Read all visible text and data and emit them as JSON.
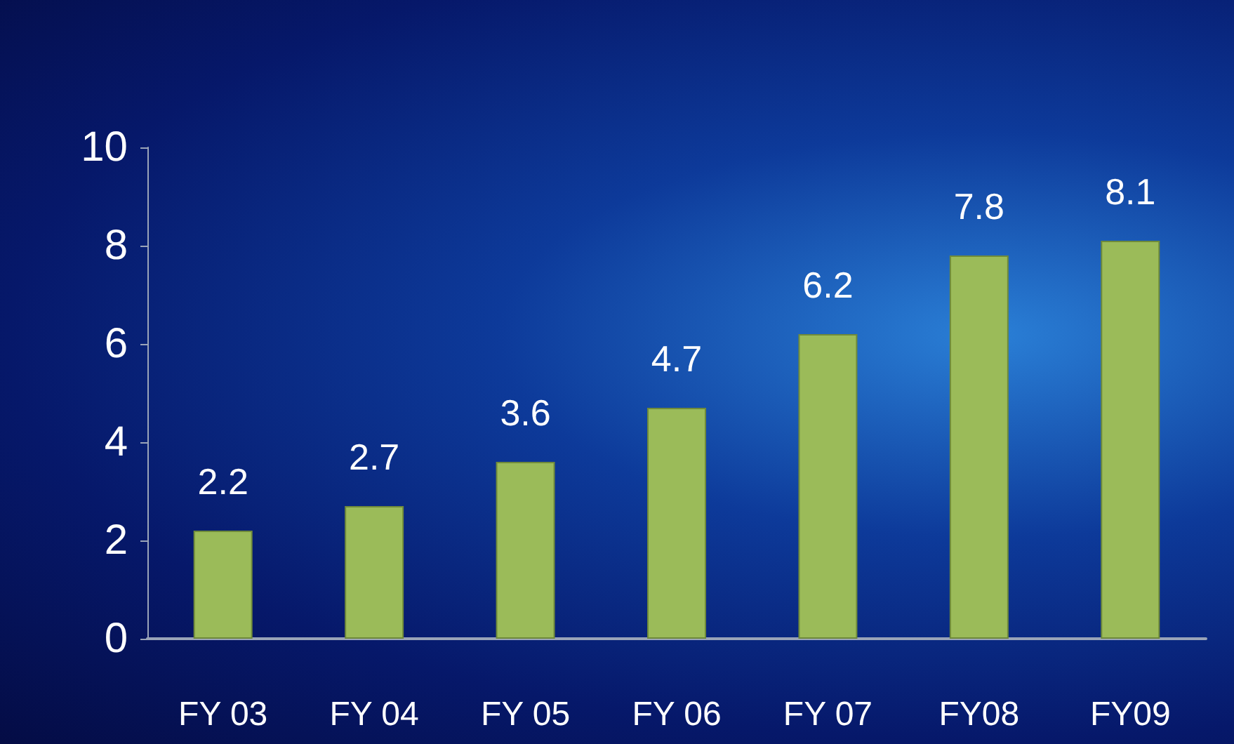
{
  "chart_data": {
    "type": "bar",
    "categories": [
      "FY 03",
      "FY 04",
      "FY 05",
      "FY 06",
      "FY 07",
      "FY08",
      "FY09"
    ],
    "values": [
      2.2,
      2.7,
      3.6,
      4.7,
      6.2,
      7.8,
      8.1
    ],
    "color": "#9bbb59",
    "ylim": [
      0,
      10
    ],
    "yticks": [
      0,
      2,
      4,
      6,
      8,
      10
    ],
    "grid": false,
    "data_labels": true
  }
}
